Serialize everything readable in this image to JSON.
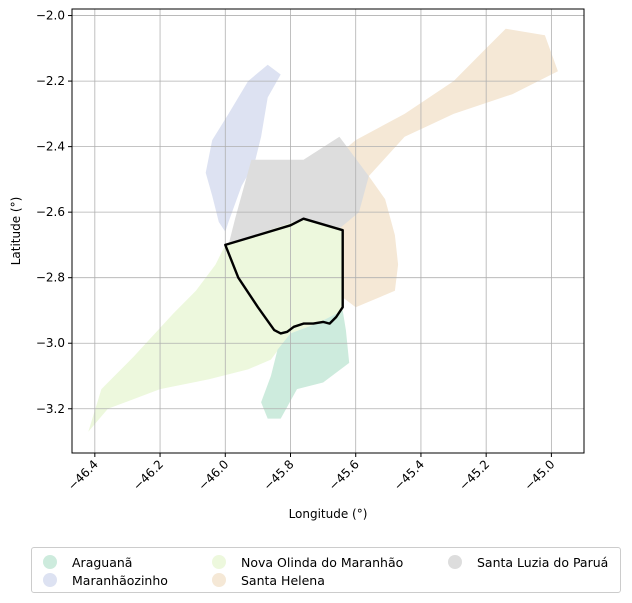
{
  "chart_data": {
    "type": "map",
    "xlabel": "Longitude (°)",
    "ylabel": "Latitude (°)",
    "xlim": [
      -46.47,
      -44.9
    ],
    "ylim": [
      -3.335,
      -1.98
    ],
    "xticks": [
      -46.4,
      -46.2,
      -46.0,
      -45.8,
      -45.6,
      -45.4,
      -45.2,
      -45.0
    ],
    "xtick_labels": [
      "−46.4",
      "−46.2",
      "−46.0",
      "−45.8",
      "−45.6",
      "−45.4",
      "−45.2",
      "−45.0"
    ],
    "yticks": [
      -2.0,
      -2.2,
      -2.4,
      -2.6,
      -2.8,
      -3.0,
      -3.2
    ],
    "ytick_labels": [
      "−2.0",
      "−2.2",
      "−2.4",
      "−2.6",
      "−2.8",
      "−3.0",
      "−3.2"
    ],
    "grid": true,
    "legend_placement": "below",
    "regions": [
      {
        "name": "Santa Helena",
        "color": "#f5e8d6",
        "coords": [
          [
            -45.14,
            -2.04
          ],
          [
            -45.02,
            -2.06
          ],
          [
            -44.98,
            -2.17
          ],
          [
            -45.12,
            -2.24
          ],
          [
            -45.3,
            -2.3
          ],
          [
            -45.45,
            -2.37
          ],
          [
            -45.56,
            -2.49
          ],
          [
            -45.51,
            -2.56
          ],
          [
            -45.48,
            -2.67
          ],
          [
            -45.47,
            -2.76
          ],
          [
            -45.48,
            -2.84
          ],
          [
            -45.6,
            -2.89
          ],
          [
            -45.64,
            -2.86
          ],
          [
            -45.65,
            -2.55
          ],
          [
            -45.66,
            -2.43
          ],
          [
            -45.6,
            -2.38
          ],
          [
            -45.45,
            -2.3
          ],
          [
            -45.3,
            -2.2
          ],
          [
            -45.2,
            -2.1
          ]
        ]
      },
      {
        "name": "Maranhãozinho",
        "color": "#dde2f2",
        "coords": [
          [
            -45.87,
            -2.15
          ],
          [
            -45.83,
            -2.18
          ],
          [
            -45.87,
            -2.25
          ],
          [
            -45.89,
            -2.37
          ],
          [
            -45.91,
            -2.45
          ],
          [
            -45.95,
            -2.52
          ],
          [
            -45.99,
            -2.63
          ],
          [
            -46.0,
            -2.66
          ],
          [
            -46.02,
            -2.63
          ],
          [
            -46.04,
            -2.55
          ],
          [
            -46.06,
            -2.48
          ],
          [
            -46.04,
            -2.38
          ],
          [
            -45.99,
            -2.3
          ],
          [
            -45.93,
            -2.2
          ]
        ]
      },
      {
        "name": "Santa Luzia do Paruá",
        "color": "#dddddd",
        "coords": [
          [
            -45.92,
            -2.44
          ],
          [
            -45.76,
            -2.44
          ],
          [
            -45.65,
            -2.37
          ],
          [
            -45.56,
            -2.49
          ],
          [
            -45.59,
            -2.6
          ],
          [
            -45.65,
            -2.65
          ],
          [
            -45.76,
            -2.62
          ],
          [
            -45.99,
            -2.7
          ],
          [
            -45.97,
            -2.62
          ]
        ]
      },
      {
        "name": "Nova Olinda do Maranhão",
        "color": "#edf8dd",
        "coords": [
          [
            -46.0,
            -2.7
          ],
          [
            -45.76,
            -2.62
          ],
          [
            -45.64,
            -2.65
          ],
          [
            -45.64,
            -2.9
          ],
          [
            -45.72,
            -2.94
          ],
          [
            -45.8,
            -2.97
          ],
          [
            -45.86,
            -3.05
          ],
          [
            -45.93,
            -3.08
          ],
          [
            -46.05,
            -3.11
          ],
          [
            -46.2,
            -3.14
          ],
          [
            -46.36,
            -3.2
          ],
          [
            -46.42,
            -3.27
          ],
          [
            -46.38,
            -3.14
          ],
          [
            -46.28,
            -3.04
          ],
          [
            -46.16,
            -2.91
          ],
          [
            -46.09,
            -2.84
          ],
          [
            -46.03,
            -2.76
          ]
        ]
      },
      {
        "name": "Araguanã",
        "color": "#cdebdd",
        "coords": [
          [
            -45.8,
            -2.97
          ],
          [
            -45.72,
            -2.94
          ],
          [
            -45.64,
            -2.9
          ],
          [
            -45.63,
            -2.96
          ],
          [
            -45.62,
            -3.06
          ],
          [
            -45.7,
            -3.12
          ],
          [
            -45.78,
            -3.14
          ],
          [
            -45.83,
            -3.23
          ],
          [
            -45.87,
            -3.23
          ],
          [
            -45.89,
            -3.18
          ],
          [
            -45.86,
            -3.1
          ],
          [
            -45.84,
            -3.02
          ]
        ]
      }
    ],
    "highlight_outline": {
      "name": "Nova Olinda do Maranhão",
      "coords": [
        [
          -46.0,
          -2.7
        ],
        [
          -45.9,
          -2.67
        ],
        [
          -45.8,
          -2.64
        ],
        [
          -45.76,
          -2.62
        ],
        [
          -45.64,
          -2.655
        ],
        [
          -45.64,
          -2.89
        ],
        [
          -45.66,
          -2.92
        ],
        [
          -45.68,
          -2.94
        ],
        [
          -45.7,
          -2.935
        ],
        [
          -45.73,
          -2.94
        ],
        [
          -45.76,
          -2.94
        ],
        [
          -45.79,
          -2.95
        ],
        [
          -45.81,
          -2.965
        ],
        [
          -45.83,
          -2.97
        ],
        [
          -45.85,
          -2.96
        ],
        [
          -45.9,
          -2.89
        ],
        [
          -45.96,
          -2.8
        ]
      ]
    },
    "legend": [
      {
        "label": "Araguanã",
        "color": "#cdebdd"
      },
      {
        "label": "Maranhãozinho",
        "color": "#dde2f2"
      },
      {
        "label": "Nova Olinda do Maranhão",
        "color": "#edf8dd"
      },
      {
        "label": "Santa Helena",
        "color": "#f5e8d6"
      },
      {
        "label": "Santa Luzia do Paruá",
        "color": "#dddddd"
      }
    ]
  }
}
